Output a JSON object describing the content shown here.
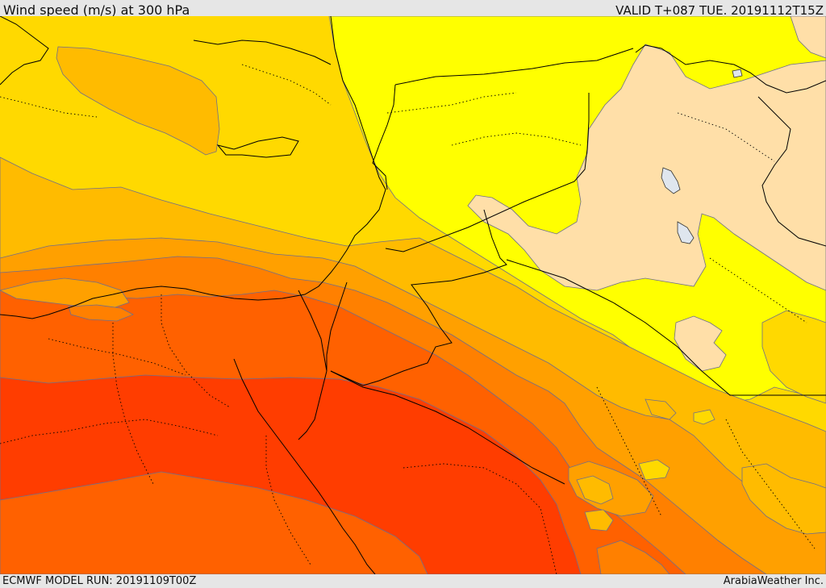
{
  "header": {
    "title": "Wind speed (m/s) at 300 hPa",
    "valid": "VALID T+087 TUE. 20191112T15Z"
  },
  "footer": {
    "model_run": "ECMWF MODEL RUN: 20191109T00Z",
    "credit": "ArabiaWeather Inc."
  },
  "map": {
    "variable": "wind speed",
    "level": "300 hPa",
    "units": "m/s",
    "bands": [
      {
        "name": "band-1",
        "color": "#ffdfa8"
      },
      {
        "name": "band-2",
        "color": "#ffff00"
      },
      {
        "name": "band-3",
        "color": "#ffd900"
      },
      {
        "name": "band-4",
        "color": "#ffbb00"
      },
      {
        "name": "band-5",
        "color": "#ffa000"
      },
      {
        "name": "band-6",
        "color": "#ff8000"
      },
      {
        "name": "band-7",
        "color": "#ff6100"
      },
      {
        "name": "band-8",
        "color": "#ff3d00"
      }
    ],
    "contour_color": "#6e6e8c",
    "lake_color": "#dfe6ee",
    "border_color": "#000000"
  }
}
